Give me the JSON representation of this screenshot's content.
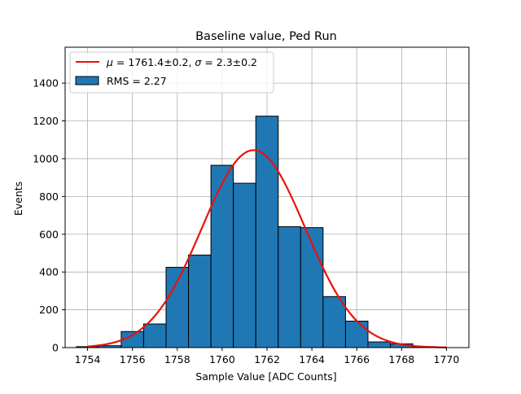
{
  "chart_data": {
    "type": "bar",
    "title": "Baseline value, Ped Run",
    "xlabel": "Sample Value [ADC Counts]",
    "ylabel": "Events",
    "xlim": [
      1753.0,
      1771.0
    ],
    "ylim": [
      0,
      1590
    ],
    "xticks": [
      1754,
      1756,
      1758,
      1760,
      1762,
      1764,
      1766,
      1768,
      1770
    ],
    "yticks": [
      0,
      200,
      400,
      600,
      800,
      1000,
      1200,
      1400
    ],
    "grid": true,
    "legend_position": "top-left",
    "histogram": {
      "name": "RMS = 2.27",
      "bin_width": 1,
      "bin_lefts": [
        1753.5,
        1754.5,
        1755.5,
        1756.5,
        1757.5,
        1758.5,
        1759.5,
        1760.5,
        1761.5,
        1762.5,
        1763.5,
        1764.5,
        1765.5,
        1766.5,
        1767.5,
        1768.5
      ],
      "values": [
        5,
        10,
        85,
        125,
        425,
        490,
        965,
        870,
        1225,
        640,
        635,
        270,
        140,
        30,
        20,
        5
      ],
      "color": "#1f77b4",
      "edge_color": "#000000"
    },
    "fit": {
      "name": "$\\mu = $1761.4±0.2, $\\sigma = $2.3±0.2",
      "legend_mu_symbol": "μ",
      "legend_mu_value": " = 1761.4±0.2, ",
      "legend_sigma_symbol": "σ",
      "legend_sigma_value": " = 2.3±0.2",
      "mu": 1761.4,
      "sigma": 2.3,
      "amplitude": 1045,
      "x_range": [
        1754,
        1770
      ],
      "color": "#e8120c"
    },
    "legend": {
      "line_label": "μ = 1761.4±0.2, σ = 2.3±0.2",
      "bar_label": "RMS = 2.27"
    }
  }
}
